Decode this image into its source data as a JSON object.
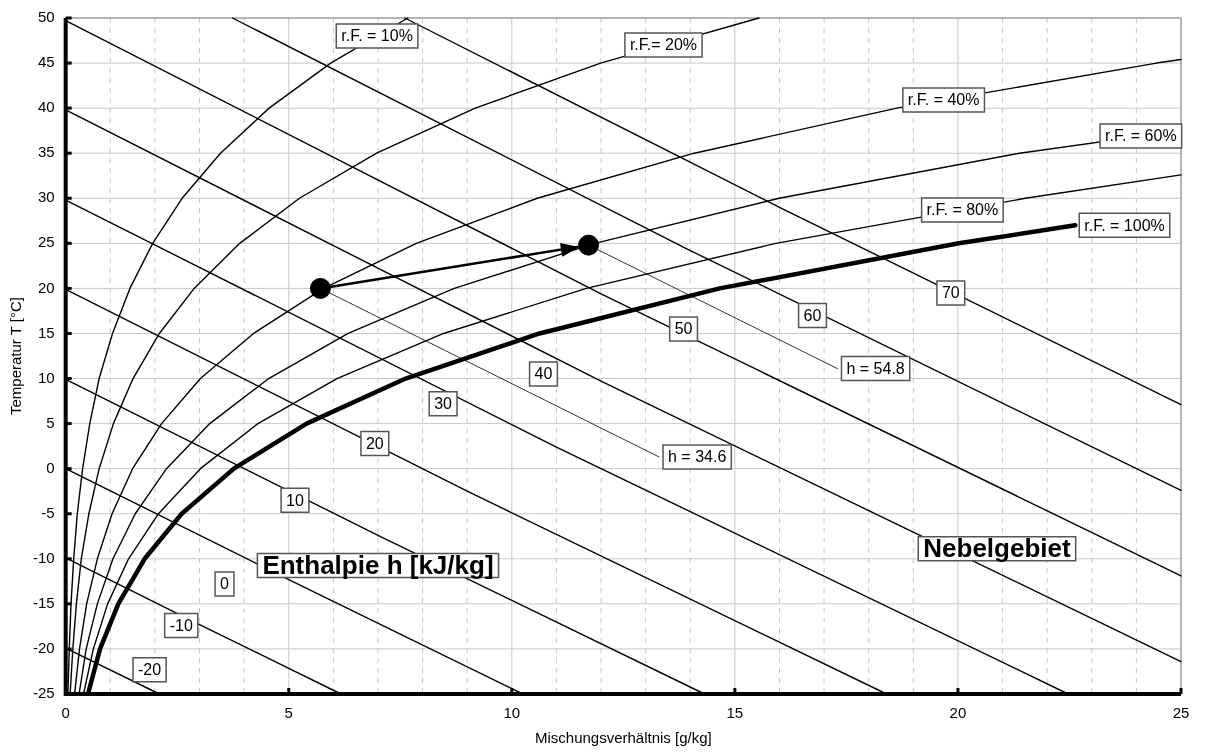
{
  "chart_data": {
    "type": "line",
    "xlabel": "Mischungsverhältnis [g/kg]",
    "ylabel": "Temperatur T [°C]",
    "xlim": [
      0,
      25
    ],
    "ylim": [
      -25,
      50
    ],
    "xticks": [
      0,
      {
        "value": 1,
        "label": null
      },
      {
        "value": 2,
        "label": null
      },
      {
        "value": 3,
        "label": null
      },
      {
        "value": 4,
        "label": null
      },
      5,
      {
        "value": 6,
        "label": null
      },
      {
        "value": 7,
        "label": null
      },
      {
        "value": 8,
        "label": null
      },
      {
        "value": 9,
        "label": null
      },
      10,
      {
        "value": 11,
        "label": null
      },
      {
        "value": 12,
        "label": null
      },
      {
        "value": 13,
        "label": null
      },
      {
        "value": 14,
        "label": null
      },
      15,
      {
        "value": 16,
        "label": null
      },
      {
        "value": 17,
        "label": null
      },
      {
        "value": 18,
        "label": null
      },
      {
        "value": 19,
        "label": null
      },
      20,
      {
        "value": 21,
        "label": null
      },
      {
        "value": 22,
        "label": null
      },
      {
        "value": 23,
        "label": null
      },
      {
        "value": 24,
        "label": null
      },
      25
    ],
    "yticks": [
      -25,
      -20,
      -15,
      -10,
      -5,
      0,
      5,
      10,
      15,
      20,
      25,
      30,
      35,
      40,
      45,
      50
    ],
    "grid": true,
    "legend": false,
    "marker": "none",
    "line_style": "solid",
    "series": [
      {
        "color": "#000000",
        "x": [
          0.5,
          0.77,
          1.18,
          1.77,
          2.6,
          3.77,
          5.4,
          7.62,
          10.62,
          14.66,
          20.02,
          22.63
        ],
        "values": [
          -25,
          -20,
          -15,
          -10,
          -5,
          0,
          5,
          10,
          15,
          20,
          25,
          27
        ]
      },
      {
        "color": "#000000",
        "x": [
          0.4,
          0.62,
          0.94,
          1.41,
          2.08,
          3.02,
          4.31,
          6.08,
          8.47,
          11.67,
          15.92,
          21.51,
          25
        ],
        "values": [
          -25,
          -20,
          -15,
          -10,
          -5,
          0,
          5,
          10,
          15,
          20,
          25,
          30,
          32.6
        ]
      },
      {
        "color": "#000000",
        "x": [
          0.3,
          0.46,
          0.71,
          1.06,
          1.56,
          2.26,
          3.23,
          4.55,
          6.33,
          8.71,
          11.86,
          15.99,
          21.38,
          25
        ],
        "values": [
          -25,
          -20,
          -15,
          -10,
          -5,
          0,
          5,
          10,
          15,
          20,
          25,
          30,
          35,
          37.5
        ]
      },
      {
        "color": "#000000",
        "x": [
          0.2,
          0.31,
          0.47,
          0.71,
          1.04,
          1.5,
          2.15,
          3.02,
          4.21,
          5.78,
          7.86,
          10.57,
          14.09,
          18.63,
          24.45,
          25
        ],
        "values": [
          -25,
          -20,
          -15,
          -10,
          -5,
          0,
          5,
          10,
          15,
          20,
          25,
          30,
          35,
          40,
          45,
          45.4
        ]
      },
      {
        "color": "#000000",
        "x": [
          0.1,
          0.16,
          0.24,
          0.35,
          0.52,
          0.75,
          1.07,
          1.51,
          2.1,
          2.88,
          3.9,
          5.24,
          6.97,
          9.18,
          11.99,
          15.54
        ],
        "values": [
          -25,
          -20,
          -15,
          -10,
          -5,
          0,
          5,
          10,
          15,
          20,
          25,
          30,
          35,
          40,
          45,
          50
        ]
      },
      {
        "color": "#000000",
        "x": [
          0.05,
          0.08,
          0.12,
          0.18,
          0.26,
          0.38,
          0.54,
          0.75,
          1.05,
          1.44,
          1.95,
          2.61,
          3.47,
          4.56,
          5.94,
          7.67
        ],
        "values": [
          -25,
          -20,
          -15,
          -10,
          -5,
          0,
          5,
          10,
          15,
          20,
          25,
          30,
          35,
          40,
          45,
          50
        ]
      },
      {
        "color": "#000000",
        "x": [
          0,
          2.1
        ],
        "values": [
          -19.9,
          -25
        ]
      },
      {
        "color": "#000000",
        "x": [
          0,
          3,
          6.17
        ],
        "values": [
          -9.9,
          -17.3,
          -25
        ]
      },
      {
        "color": "#000000",
        "x": [
          0,
          5,
          10.25
        ],
        "values": [
          0,
          -12.3,
          -25
        ]
      },
      {
        "color": "#000000",
        "x": [
          0,
          7,
          14.32
        ],
        "values": [
          9.9,
          -7.4,
          -25
        ]
      },
      {
        "color": "#000000",
        "x": [
          0,
          9,
          18.4
        ],
        "values": [
          19.9,
          -2.5,
          -25
        ]
      },
      {
        "color": "#000000",
        "x": [
          0,
          11,
          22.47
        ],
        "values": [
          29.8,
          2.4,
          -25
        ]
      },
      {
        "color": "#000000",
        "x": [
          0,
          12,
          25
        ],
        "values": [
          39.8,
          9.7,
          -21.4
        ]
      },
      {
        "color": "#000000",
        "x": [
          0,
          12,
          25
        ],
        "values": [
          49.7,
          19.4,
          -11.9
        ]
      },
      {
        "color": "#000000",
        "x": [
          3.74,
          14,
          25
        ],
        "values": [
          50,
          24.2,
          -2.4
        ]
      },
      {
        "color": "#000000",
        "x": [
          7.6,
          16,
          25
        ],
        "values": [
          50,
          29,
          7.1
        ]
      },
      {
        "color": "#000000",
        "x": [
          5.71,
          13.3
        ],
        "values": [
          20,
          1.3
        ]
      },
      {
        "color": "#000000",
        "x": [
          11.72,
          17.3
        ],
        "values": [
          24.8,
          11.1
        ]
      },
      {
        "color": "#000000",
        "x": [
          5.71,
          11.72
        ],
        "values": [
          20,
          24.8
        ]
      },
      {
        "type": "scatter",
        "color": "#000000",
        "marker": "circle",
        "x": [
          5.71,
          11.72
        ],
        "values": [
          20,
          24.8
        ]
      }
    ],
    "annotations": [
      {
        "text": "r.F. = 10%",
        "x": 6.98,
        "y": 48
      },
      {
        "text": "r.F.= 20%",
        "x": 13.4,
        "y": 47
      },
      {
        "text": "r.F. = 40%",
        "x": 19.68,
        "y": 40.9
      },
      {
        "text": "r.F. = 60%",
        "x": 24.1,
        "y": 36.9
      },
      {
        "text": "r.F. = 80%",
        "x": 20.1,
        "y": 28.7
      },
      {
        "text": "r.F. = 100%",
        "x": 22.63,
        "y": 27
      },
      {
        "text": "70",
        "x": 19.84,
        "y": 19.5
      },
      {
        "text": "60",
        "x": 16.74,
        "y": 17
      },
      {
        "text": "50",
        "x": 13.85,
        "y": 15.5
      },
      {
        "text": "40",
        "x": 10.71,
        "y": 10.5
      },
      {
        "text": "30",
        "x": 8.46,
        "y": 7.2
      },
      {
        "text": "20",
        "x": 6.93,
        "y": 2.8
      },
      {
        "text": "10",
        "x": 5.14,
        "y": -3.5
      },
      {
        "text": "0",
        "x": 3.56,
        "y": -12.8
      },
      {
        "text": "-10",
        "x": 2.59,
        "y": -17.4
      },
      {
        "text": "-20",
        "x": 1.88,
        "y": -22.3
      },
      {
        "text": "h = 54.8",
        "x": 17.3,
        "y": 11.1
      },
      {
        "text": "h = 34.6",
        "x": 13.3,
        "y": 1.3
      },
      "Enthalpie h [kJ/kg]",
      "Nebelgebiet"
    ]
  }
}
